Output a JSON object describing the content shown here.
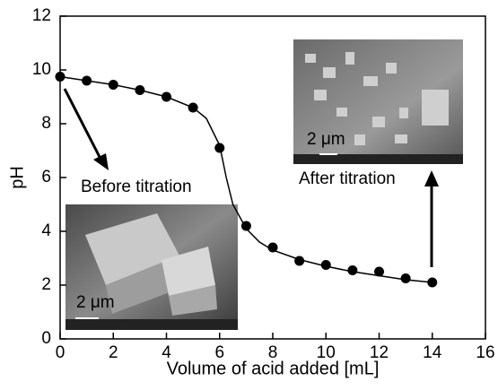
{
  "chart_data": {
    "type": "scatter",
    "x_label": "Volume of acid added [mL]",
    "y_label": "pH",
    "x": [
      0,
      1,
      2,
      3,
      4,
      5,
      6,
      7,
      8,
      9,
      10,
      11,
      12,
      13,
      14
    ],
    "values": [
      9.75,
      9.6,
      9.45,
      9.25,
      9.0,
      8.6,
      7.1,
      4.2,
      3.4,
      2.9,
      2.75,
      2.55,
      2.5,
      2.25,
      2.1
    ],
    "color": "#000000",
    "fit": {
      "x": [
        0,
        1,
        2,
        3,
        4,
        5,
        5.5,
        6,
        6.25,
        6.5,
        7,
        7.5,
        8,
        9,
        10,
        11,
        12,
        13,
        14
      ],
      "values": [
        9.75,
        9.6,
        9.45,
        9.25,
        9.0,
        8.6,
        8.2,
        7.2,
        6.0,
        5.0,
        4.1,
        3.6,
        3.3,
        2.95,
        2.7,
        2.5,
        2.35,
        2.2,
        2.1
      ]
    },
    "xlim": [
      0,
      16
    ],
    "ylim": [
      0,
      12
    ],
    "xticks": [
      0,
      2,
      4,
      6,
      8,
      10,
      12,
      14,
      16
    ],
    "yticks": [
      0,
      2,
      4,
      6,
      8,
      10,
      12
    ],
    "annotations": [
      "Before titration",
      "After titration"
    ],
    "scale_bars": [
      "2 μm",
      "2 μm"
    ]
  }
}
